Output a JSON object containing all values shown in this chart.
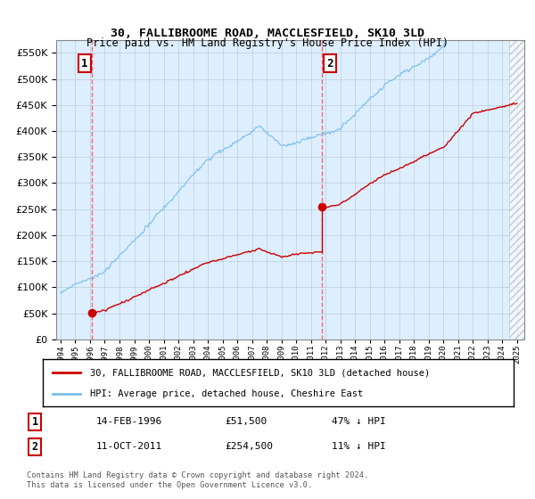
{
  "title": "30, FALLIBROOME ROAD, MACCLESFIELD, SK10 3LD",
  "subtitle": "Price paid vs. HM Land Registry's House Price Index (HPI)",
  "legend_line1": "30, FALLIBROOME ROAD, MACCLESFIELD, SK10 3LD (detached house)",
  "legend_line2": "HPI: Average price, detached house, Cheshire East",
  "transaction1_label": "1",
  "transaction1_date": "14-FEB-1996",
  "transaction1_price": "£51,500",
  "transaction1_hpi": "47% ↓ HPI",
  "transaction1_x": 1996.12,
  "transaction1_y": 51500,
  "transaction2_label": "2",
  "transaction2_date": "11-OCT-2011",
  "transaction2_price": "£254,500",
  "transaction2_hpi": "11% ↓ HPI",
  "transaction2_x": 2011.78,
  "transaction2_y": 254500,
  "copyright": "Contains HM Land Registry data © Crown copyright and database right 2024.\nThis data is licensed under the Open Government Licence v3.0.",
  "hpi_color": "#7bbfea",
  "price_color": "#cc0000",
  "dot_color": "#cc0000",
  "vline_color": "#ff6666",
  "plot_bg_color": "#ddeeff",
  "ylim": [
    0,
    575000
  ],
  "yticks": [
    0,
    50000,
    100000,
    150000,
    200000,
    250000,
    300000,
    350000,
    400000,
    450000,
    500000,
    550000
  ],
  "xlim_left": 1993.7,
  "xlim_right": 2025.5
}
